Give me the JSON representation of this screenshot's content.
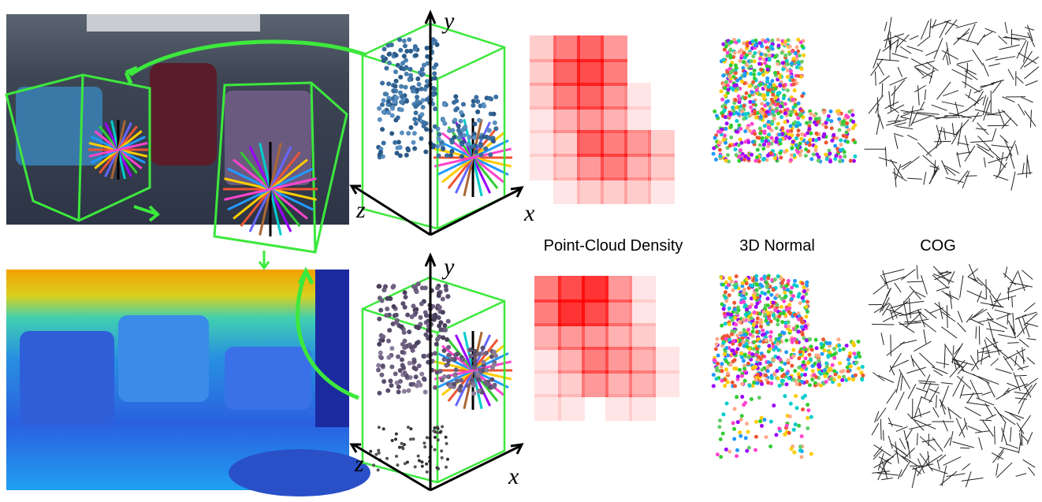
{
  "captions": [
    "Point-Cloud Density",
    "3D Normal",
    "COG"
  ],
  "axes": [
    {
      "y": "y",
      "z": "z",
      "x": "x"
    },
    {
      "y": "y",
      "z": "z",
      "x": "x"
    }
  ]
}
